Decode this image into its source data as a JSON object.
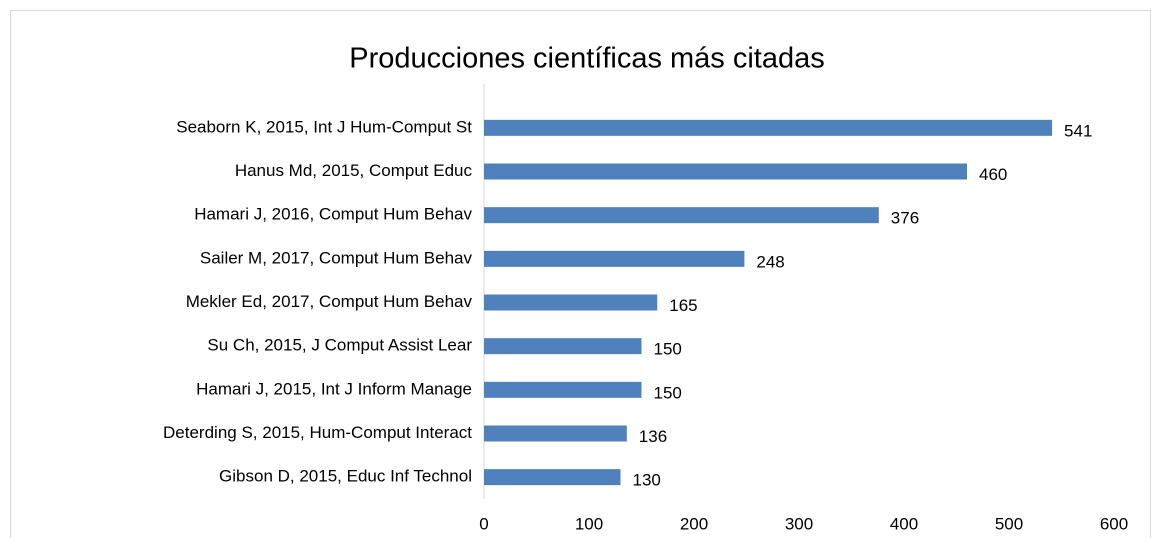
{
  "chart_data": {
    "type": "bar",
    "orientation": "horizontal",
    "title": "Producciones científicas más citadas",
    "categories": [
      "Seaborn K, 2015, Int J Hum-Comput St",
      "Hanus Md, 2015, Comput Educ",
      "Hamari J, 2016, Comput Hum Behav",
      "Sailer M, 2017, Comput Hum Behav",
      "Mekler Ed, 2017, Comput Hum Behav",
      "Su Ch, 2015, J Comput Assist Lear",
      "Hamari J, 2015, Int J Inform Manage",
      "Deterding S, 2015, Hum-Comput Interact",
      "Gibson D, 2015, Educ Inf Technol"
    ],
    "values": [
      541,
      460,
      376,
      248,
      165,
      150,
      150,
      136,
      130
    ],
    "color": "#4f81bd",
    "xlim": [
      0,
      600
    ],
    "xticks": [
      0,
      100,
      200,
      300,
      400,
      500,
      600
    ],
    "grid": false
  }
}
